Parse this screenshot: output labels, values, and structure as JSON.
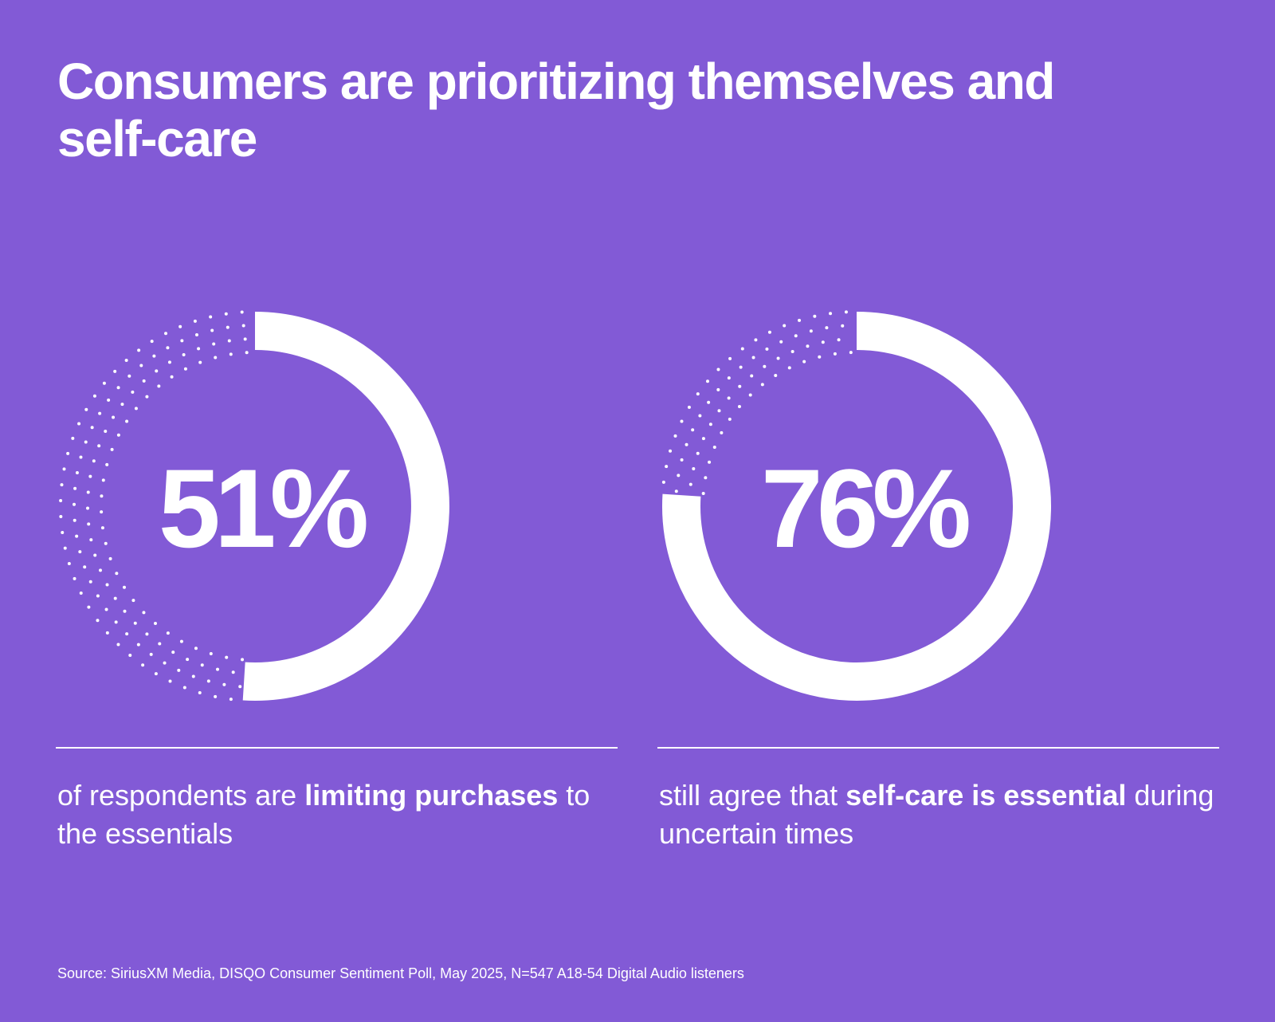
{
  "title": "Consumers are prioritizing themselves and self-care",
  "colors": {
    "background": "#825ad6",
    "foreground": "#ffffff"
  },
  "stats": [
    {
      "value_label": "51%",
      "caption_pre": "of respondents are ",
      "caption_bold": "limiting purchases",
      "caption_post": " to the essentials"
    },
    {
      "value_label": "76%",
      "caption_pre": "still agree that ",
      "caption_bold": "self-care is essential",
      "caption_post": " during uncertain times"
    }
  ],
  "chart_data": [
    {
      "type": "donut",
      "value": 51,
      "max": 100,
      "unit": "%",
      "label": "of respondents are limiting purchases to the essentials",
      "remainder_style": "dotted"
    },
    {
      "type": "donut",
      "value": 76,
      "max": 100,
      "unit": "%",
      "label": "still agree that self-care is essential during uncertain times",
      "remainder_style": "dotted"
    }
  ],
  "source": "Source: SiriusXM Media, DISQO Consumer Sentiment Poll, May 2025, N=547 A18-54 Digital Audio listeners"
}
